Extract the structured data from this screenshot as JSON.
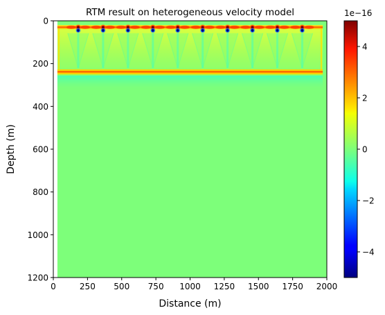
{
  "chart_data": {
    "type": "heatmap",
    "title": "RTM result on heterogeneous velocity model",
    "xlabel": "Distance (m)",
    "ylabel": "Depth (m)",
    "xlim": [
      0,
      2000
    ],
    "ylim": [
      1200,
      0
    ],
    "y_inverted": true,
    "x_ticks": [
      0,
      250,
      500,
      750,
      1000,
      1250,
      1500,
      1750,
      2000
    ],
    "x_tick_labels": [
      "0",
      "250",
      "500",
      "750",
      "1000",
      "1250",
      "1500",
      "1750",
      "2000"
    ],
    "y_ticks": [
      0,
      200,
      400,
      600,
      800,
      1000,
      1200
    ],
    "y_tick_labels": [
      "0",
      "200",
      "400",
      "600",
      "800",
      "1000",
      "1200"
    ],
    "colormap": "jet",
    "colorbar": {
      "vmin": -5e-16,
      "vmax": 5e-16,
      "scale_label": "1e−16",
      "ticks": [
        -4,
        -2,
        0,
        2,
        4
      ],
      "tick_labels": [
        "−4",
        "−2",
        "0",
        "2",
        "4"
      ]
    },
    "background_value": 0,
    "image_extent": {
      "x_start": 30,
      "x_end": 2000
    },
    "sources": {
      "x": [
        182,
        364,
        546,
        728,
        910,
        1092,
        1274,
        1456,
        1638,
        1820
      ],
      "depth_positive": 30,
      "depth_negative": 45
    },
    "reflector": {
      "depth": 240,
      "x_start": 30,
      "x_end": 1970
    },
    "grid": false
  }
}
